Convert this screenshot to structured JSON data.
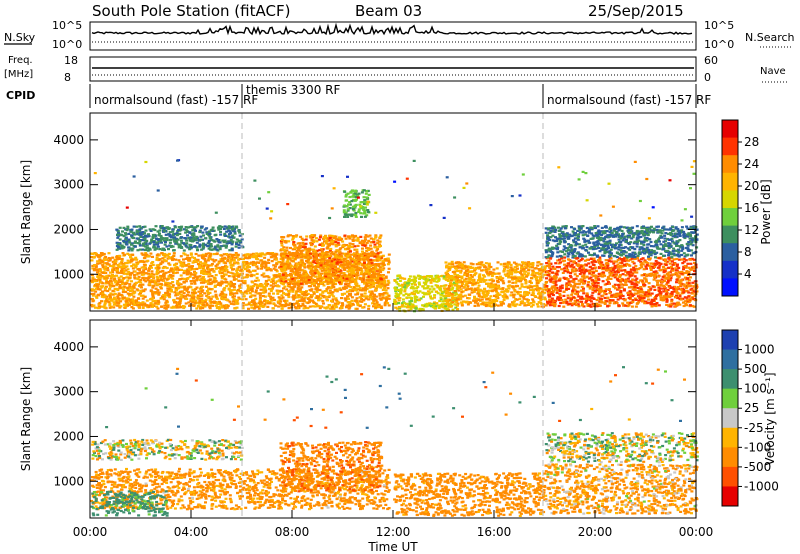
{
  "header": {
    "title": "South Pole Station (fitACF)",
    "beam": "Beam 03",
    "date": "25/Sep/2015"
  },
  "top_panels": {
    "nsky_label": "N.Sky",
    "nsky_ticks": [
      "10^5",
      "10^0"
    ],
    "nsearch_label": "N.Search",
    "nsearch_ticks": [
      "10^5",
      "10^0"
    ],
    "freq_label_1": "Freq.",
    "freq_label_2": "[MHz]",
    "freq_ticks": [
      "18",
      "8"
    ],
    "nave_label": "Nave",
    "nave_ticks": [
      "60",
      "0"
    ],
    "cpid_label": "CPID",
    "cpid_segments": [
      {
        "label": "normalsound (fast) -157 RF",
        "start_hour": 0,
        "end_hour": 6
      },
      {
        "label": "themis 3300 RF",
        "start_hour": 6,
        "end_hour": 18
      },
      {
        "label": "normalsound (fast) -157 RF",
        "start_hour": 18,
        "end_hour": 24
      }
    ]
  },
  "power_panel": {
    "ylabel": "Slant Range [km]",
    "yticks": [
      "4000",
      "3000",
      "2000",
      "1000"
    ],
    "colorbar_label": "Power [dB]",
    "colorbar_ticks": [
      "28",
      "24",
      "20",
      "16",
      "12",
      "8",
      "4"
    ],
    "colors": [
      "#e60000",
      "#ff3300",
      "#ff8c00",
      "#ffb400",
      "#d6d600",
      "#6fcf3c",
      "#3d8f5f",
      "#2b5fa0",
      "#1530c8",
      "#0010ff"
    ]
  },
  "velocity_panel": {
    "ylabel": "Slant Range [km]",
    "yticks": [
      "4000",
      "3000",
      "2000",
      "1000"
    ],
    "colorbar_label": "Velocity [m s⁻¹]",
    "colorbar_ticks": [
      "1000",
      "500",
      "100",
      "25",
      "-25",
      "-100",
      "-500",
      "-1000"
    ],
    "colors": [
      "#1e40b0",
      "#2f6fa0",
      "#3d8f6f",
      "#6fcf3c",
      "#c8c8c8",
      "#ffb400",
      "#ff8c00",
      "#ff5000",
      "#e60000"
    ]
  },
  "xaxis": {
    "ticks": [
      "00:00",
      "04:00",
      "08:00",
      "12:00",
      "16:00",
      "20:00",
      "00:00"
    ],
    "label": "Time UT"
  },
  "chart_data": [
    {
      "type": "heatmap",
      "name": "power",
      "xlabel": "Time UT",
      "ylabel": "Slant Range [km]",
      "xlim": [
        0,
        24
      ],
      "ylim": [
        180,
        4600
      ],
      "zlabel": "Power [dB]",
      "zlim": [
        0,
        30
      ],
      "blobs": [
        {
          "t0": 0.0,
          "t1": 11.8,
          "r0": 250,
          "r1": 1500,
          "z": 22
        },
        {
          "t0": 1.0,
          "t1": 6.0,
          "r0": 1550,
          "r1": 2100,
          "z": 9
        },
        {
          "t0": 7.5,
          "t1": 11.5,
          "r0": 800,
          "r1": 1900,
          "z": 23
        },
        {
          "t0": 10.0,
          "t1": 11.0,
          "r0": 2300,
          "r1": 2900,
          "z": 12
        },
        {
          "t0": 12.0,
          "t1": 14.5,
          "r0": 200,
          "r1": 1000,
          "z": 17
        },
        {
          "t0": 14.0,
          "t1": 18.0,
          "r0": 300,
          "r1": 1300,
          "z": 21
        },
        {
          "t0": 18.0,
          "t1": 24.0,
          "r0": 300,
          "r1": 1400,
          "z": 25
        },
        {
          "t0": 18.0,
          "t1": 24.0,
          "r0": 1400,
          "r1": 2100,
          "z": 8
        }
      ]
    },
    {
      "type": "heatmap",
      "name": "velocity",
      "xlabel": "Time UT",
      "ylabel": "Slant Range [km]",
      "xlim": [
        0,
        24
      ],
      "ylim": [
        180,
        4600
      ],
      "zlabel": "Velocity [m s-1]",
      "zlim": [
        -1000,
        1000
      ],
      "blobs": [
        {
          "t0": 0.0,
          "t1": 11.8,
          "r0": 400,
          "r1": 1300,
          "z": -200
        },
        {
          "t0": 0.0,
          "t1": 6.0,
          "r0": 1500,
          "r1": 1950,
          "z": 0
        },
        {
          "t0": 0.0,
          "t1": 3.0,
          "r0": 250,
          "r1": 800,
          "z": 200
        },
        {
          "t0": 7.5,
          "t1": 11.5,
          "r0": 800,
          "r1": 1900,
          "z": -400
        },
        {
          "t0": 12.0,
          "t1": 18.0,
          "r0": 250,
          "r1": 1200,
          "z": -250
        },
        {
          "t0": 18.0,
          "t1": 24.0,
          "r0": 300,
          "r1": 1400,
          "z": -150
        },
        {
          "t0": 18.0,
          "t1": 24.0,
          "r0": 1450,
          "r1": 2100,
          "z": 0
        }
      ]
    }
  ]
}
